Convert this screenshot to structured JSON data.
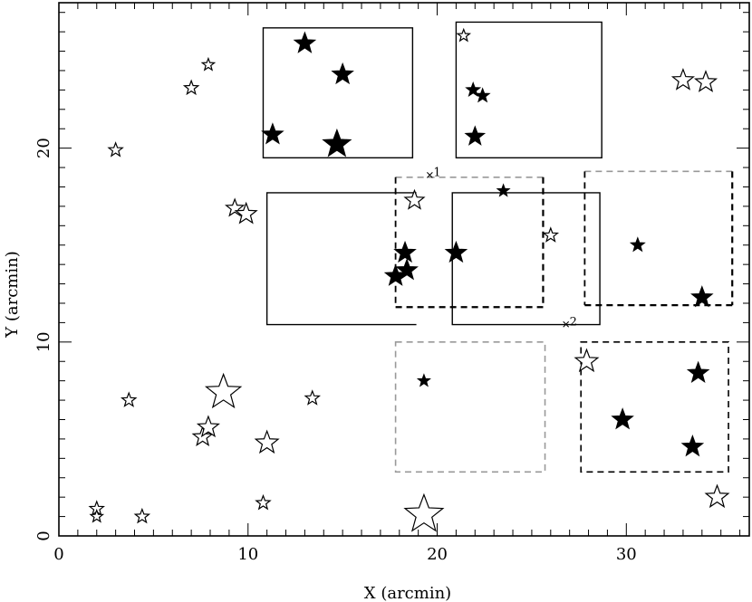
{
  "chart_data": {
    "type": "scatter",
    "xlabel": "X (arcmin)",
    "ylabel": "Y (arcmin)",
    "xlim": [
      0,
      36.5
    ],
    "ylim": [
      0,
      27.5
    ],
    "xticks": [
      0,
      10,
      20,
      30
    ],
    "yticks": [
      0,
      10,
      20
    ],
    "grid": false,
    "marker": "five-pointed star; filled = solid black, open = outline",
    "stars": [
      {
        "x": 19.3,
        "y": 1.1,
        "m": 22,
        "filled": false
      },
      {
        "x": 34.8,
        "y": 2.0,
        "m": 13,
        "filled": false
      },
      {
        "x": 11.0,
        "y": 4.8,
        "m": 13,
        "filled": false
      },
      {
        "x": 7.6,
        "y": 5.1,
        "m": 11,
        "filled": false
      },
      {
        "x": 7.9,
        "y": 5.6,
        "m": 12,
        "filled": false
      },
      {
        "x": 8.7,
        "y": 7.4,
        "m": 20,
        "filled": false
      },
      {
        "x": 3.7,
        "y": 7.0,
        "m": 8,
        "filled": false
      },
      {
        "x": 13.4,
        "y": 7.1,
        "m": 8,
        "filled": false
      },
      {
        "x": 10.8,
        "y": 1.7,
        "m": 8,
        "filled": false
      },
      {
        "x": 2.0,
        "y": 1.4,
        "m": 8,
        "filled": false
      },
      {
        "x": 2.0,
        "y": 1.0,
        "m": 7,
        "filled": false
      },
      {
        "x": 4.4,
        "y": 1.0,
        "m": 8,
        "filled": false
      },
      {
        "x": 9.3,
        "y": 16.9,
        "m": 10,
        "filled": false
      },
      {
        "x": 9.9,
        "y": 16.6,
        "m": 12,
        "filled": false
      },
      {
        "x": 3.0,
        "y": 19.9,
        "m": 8,
        "filled": false
      },
      {
        "x": 7.0,
        "y": 23.1,
        "m": 8,
        "filled": false
      },
      {
        "x": 7.9,
        "y": 24.3,
        "m": 7,
        "filled": false
      },
      {
        "x": 18.8,
        "y": 17.3,
        "m": 11,
        "filled": false
      },
      {
        "x": 21.4,
        "y": 25.8,
        "m": 7,
        "filled": false
      },
      {
        "x": 26.0,
        "y": 15.5,
        "m": 8,
        "filled": false
      },
      {
        "x": 27.9,
        "y": 9.0,
        "m": 13,
        "filled": false
      },
      {
        "x": 33.0,
        "y": 23.5,
        "m": 12,
        "filled": false
      },
      {
        "x": 34.2,
        "y": 23.4,
        "m": 12,
        "filled": false
      },
      {
        "x": 13.0,
        "y": 25.4,
        "m": 12,
        "filled": true
      },
      {
        "x": 15.0,
        "y": 23.8,
        "m": 12,
        "filled": true
      },
      {
        "x": 11.3,
        "y": 20.7,
        "m": 12,
        "filled": true
      },
      {
        "x": 14.7,
        "y": 20.2,
        "m": 16,
        "filled": true
      },
      {
        "x": 21.9,
        "y": 23.0,
        "m": 8,
        "filled": true
      },
      {
        "x": 22.4,
        "y": 22.7,
        "m": 8,
        "filled": true
      },
      {
        "x": 22.0,
        "y": 20.6,
        "m": 11,
        "filled": true
      },
      {
        "x": 23.5,
        "y": 17.8,
        "m": 7,
        "filled": true
      },
      {
        "x": 18.3,
        "y": 14.6,
        "m": 12,
        "filled": true
      },
      {
        "x": 17.8,
        "y": 13.4,
        "m": 12,
        "filled": true
      },
      {
        "x": 18.4,
        "y": 13.7,
        "m": 12,
        "filled": true
      },
      {
        "x": 21.0,
        "y": 14.6,
        "m": 12,
        "filled": true
      },
      {
        "x": 30.6,
        "y": 15.0,
        "m": 8,
        "filled": true
      },
      {
        "x": 34.0,
        "y": 12.3,
        "m": 12,
        "filled": true
      },
      {
        "x": 19.3,
        "y": 8.0,
        "m": 7,
        "filled": true
      },
      {
        "x": 33.8,
        "y": 8.4,
        "m": 12,
        "filled": true
      },
      {
        "x": 29.8,
        "y": 6.0,
        "m": 12,
        "filled": true
      },
      {
        "x": 33.5,
        "y": 4.6,
        "m": 12,
        "filled": true
      }
    ],
    "fields": [
      {
        "x0": 10.8,
        "x1": 18.7,
        "y0": 19.5,
        "y1": 26.2,
        "style": "solid"
      },
      {
        "x0": 21.0,
        "x1": 28.7,
        "y0": 19.5,
        "y1": 26.5,
        "style": "solid"
      },
      {
        "x0": 11.0,
        "x1": 18.9,
        "y0": 10.9,
        "y1": 17.7,
        "style": "solid",
        "open_right": true
      },
      {
        "x0": 20.8,
        "x1": 28.6,
        "y0": 10.9,
        "y1": 17.7,
        "style": "solid"
      },
      {
        "x0": 17.8,
        "x1": 25.6,
        "y0": 11.8,
        "y1": 18.5,
        "style": "dashed-mixed"
      },
      {
        "x0": 27.8,
        "x1": 35.6,
        "y0": 11.9,
        "y1": 18.8,
        "style": "dashed-mixed"
      },
      {
        "x0": 17.8,
        "x1": 25.7,
        "y0": 3.3,
        "y1": 10.0,
        "style": "dashed-gray"
      },
      {
        "x0": 27.6,
        "x1": 35.4,
        "y0": 3.3,
        "y1": 10.0,
        "style": "dashed-black"
      }
    ],
    "annotations": [
      {
        "text": "1",
        "x": 19.8,
        "y": 18.8
      },
      {
        "text": "2",
        "x": 27.0,
        "y": 11.1
      }
    ]
  }
}
